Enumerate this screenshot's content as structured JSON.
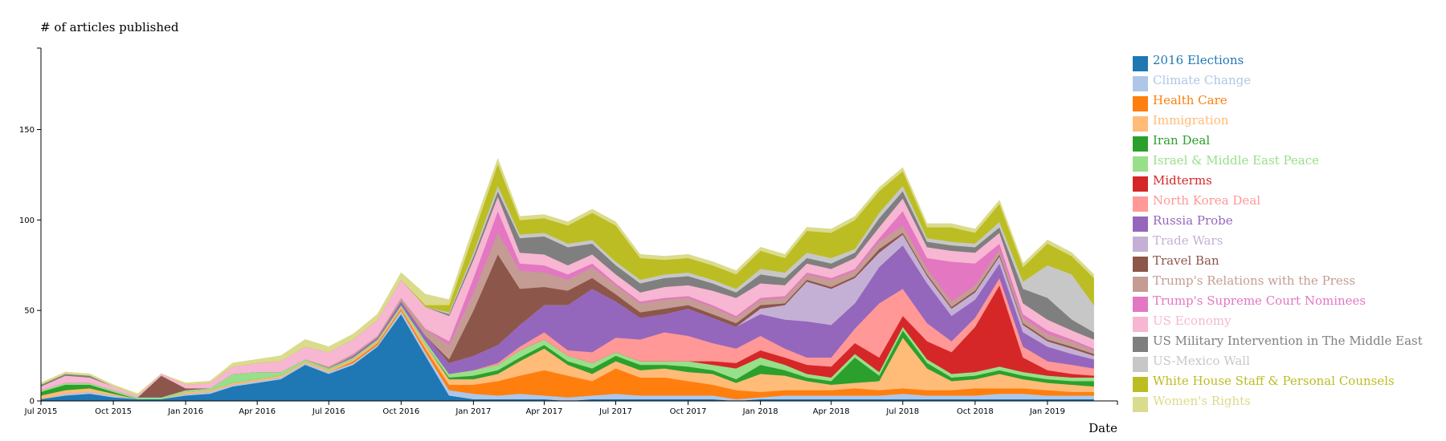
{
  "chart_data": {
    "type": "area",
    "stacked": true,
    "ylabel": "# of articles published",
    "xlabel": "Date",
    "ylim": [
      0,
      195
    ],
    "xlim": [
      "2015-07-01",
      "2019-03-31"
    ],
    "y_ticks": [
      0,
      50,
      100,
      150
    ],
    "x_ticks": [
      {
        "label": "Jul 2015",
        "date": "2015-07-01"
      },
      {
        "label": "Oct 2015",
        "date": "2015-10-01"
      },
      {
        "label": "Jan 2016",
        "date": "2016-01-01"
      },
      {
        "label": "Apr 2016",
        "date": "2016-04-01"
      },
      {
        "label": "Jul 2016",
        "date": "2016-07-01"
      },
      {
        "label": "Oct 2016",
        "date": "2016-10-01"
      },
      {
        "label": "Jan 2017",
        "date": "2017-01-01"
      },
      {
        "label": "Apr 2017",
        "date": "2017-04-01"
      },
      {
        "label": "Jul 2017",
        "date": "2017-07-01"
      },
      {
        "label": "Oct 2017",
        "date": "2017-10-01"
      },
      {
        "label": "Jan 2018",
        "date": "2018-01-01"
      },
      {
        "label": "Apr 2018",
        "date": "2018-04-01"
      },
      {
        "label": "Jul 2018",
        "date": "2018-07-01"
      },
      {
        "label": "Oct 2018",
        "date": "2018-10-01"
      },
      {
        "label": "Jan 2019",
        "date": "2019-01-01"
      }
    ],
    "legend_position": "right",
    "x": [
      "2015-07-01",
      "2015-08-01",
      "2015-09-01",
      "2015-10-01",
      "2015-11-01",
      "2015-12-01",
      "2016-01-01",
      "2016-02-01",
      "2016-03-01",
      "2016-04-01",
      "2016-05-01",
      "2016-06-01",
      "2016-07-01",
      "2016-08-01",
      "2016-09-01",
      "2016-10-01",
      "2016-11-01",
      "2016-12-01",
      "2017-01-01",
      "2017-02-01",
      "2017-03-01",
      "2017-04-01",
      "2017-05-01",
      "2017-06-01",
      "2017-07-01",
      "2017-08-01",
      "2017-09-01",
      "2017-10-01",
      "2017-11-01",
      "2017-12-01",
      "2018-01-01",
      "2018-02-01",
      "2018-03-01",
      "2018-04-01",
      "2018-05-01",
      "2018-06-01",
      "2018-07-01",
      "2018-08-01",
      "2018-09-01",
      "2018-10-01",
      "2018-11-01",
      "2018-12-01",
      "2019-01-01",
      "2019-02-01",
      "2019-03-01"
    ],
    "series": [
      {
        "name": "2016 Elections",
        "color": "#1f77b4",
        "values": [
          1,
          3,
          4,
          2,
          1,
          1,
          3,
          4,
          8,
          10,
          12,
          20,
          15,
          20,
          30,
          48,
          25,
          3,
          1,
          1,
          1,
          1,
          0,
          1,
          1,
          1,
          1,
          1,
          1,
          0,
          1,
          1,
          1,
          1,
          1,
          1,
          1,
          1,
          1,
          1,
          1,
          1,
          1,
          1,
          1
        ]
      },
      {
        "name": "Climate Change",
        "color": "#aec7e8",
        "values": [
          0,
          1,
          1,
          1,
          0,
          0,
          1,
          1,
          1,
          1,
          1,
          1,
          1,
          1,
          1,
          2,
          2,
          3,
          3,
          2,
          3,
          2,
          2,
          2,
          3,
          2,
          2,
          2,
          2,
          1,
          1,
          2,
          2,
          2,
          2,
          2,
          3,
          2,
          2,
          2,
          3,
          3,
          2,
          2,
          2
        ]
      },
      {
        "name": "Health Care",
        "color": "#ff7f0e",
        "values": [
          0,
          0,
          0,
          0,
          0,
          0,
          0,
          0,
          0,
          0,
          0,
          0,
          0,
          1,
          1,
          1,
          2,
          3,
          5,
          8,
          10,
          14,
          12,
          8,
          14,
          10,
          10,
          8,
          6,
          5,
          3,
          3,
          3,
          3,
          4,
          3,
          3,
          3,
          3,
          4,
          3,
          3,
          3,
          2,
          2
        ]
      },
      {
        "name": "Immigration",
        "color": "#ffbb78",
        "values": [
          2,
          2,
          2,
          1,
          0,
          0,
          1,
          1,
          1,
          1,
          1,
          1,
          1,
          1,
          1,
          1,
          2,
          3,
          3,
          4,
          8,
          12,
          6,
          4,
          4,
          4,
          5,
          5,
          6,
          4,
          10,
          8,
          5,
          3,
          3,
          5,
          28,
          12,
          5,
          5,
          8,
          5,
          4,
          4,
          3
        ]
      },
      {
        "name": "Iran Deal",
        "color": "#2ca02c",
        "values": [
          2,
          3,
          2,
          1,
          0,
          0,
          0,
          0,
          0,
          0,
          0,
          0,
          0,
          0,
          0,
          0,
          0,
          1,
          2,
          2,
          2,
          2,
          2,
          3,
          3,
          3,
          2,
          3,
          2,
          2,
          5,
          3,
          2,
          2,
          14,
          3,
          4,
          3,
          2,
          2,
          2,
          2,
          2,
          2,
          3
        ]
      },
      {
        "name": "Israel & Middle East Peace",
        "color": "#98df8a",
        "values": [
          1,
          1,
          1,
          1,
          1,
          1,
          1,
          1,
          5,
          4,
          2,
          1,
          1,
          1,
          1,
          1,
          2,
          2,
          3,
          3,
          4,
          3,
          3,
          3,
          2,
          2,
          2,
          3,
          3,
          6,
          4,
          3,
          2,
          2,
          2,
          2,
          2,
          2,
          2,
          2,
          2,
          2,
          2,
          2,
          2
        ]
      },
      {
        "name": "Midterms",
        "color": "#d62728",
        "values": [
          0,
          0,
          0,
          0,
          0,
          0,
          0,
          0,
          0,
          0,
          0,
          0,
          0,
          0,
          0,
          0,
          0,
          0,
          0,
          0,
          0,
          0,
          0,
          0,
          0,
          0,
          0,
          0,
          2,
          3,
          4,
          4,
          5,
          6,
          6,
          8,
          6,
          10,
          12,
          25,
          45,
          8,
          3,
          2,
          1
        ]
      },
      {
        "name": "North Korea Deal",
        "color": "#ff9896",
        "values": [
          0,
          0,
          0,
          0,
          0,
          0,
          0,
          0,
          0,
          0,
          0,
          0,
          0,
          0,
          0,
          0,
          0,
          0,
          0,
          1,
          2,
          4,
          3,
          6,
          8,
          12,
          16,
          14,
          10,
          8,
          8,
          5,
          4,
          5,
          8,
          30,
          15,
          10,
          6,
          5,
          4,
          6,
          5,
          5,
          4
        ]
      },
      {
        "name": "Russia Probe",
        "color": "#9467bd",
        "values": [
          0,
          0,
          0,
          0,
          0,
          0,
          0,
          0,
          0,
          0,
          0,
          0,
          0,
          1,
          1,
          2,
          3,
          6,
          8,
          10,
          12,
          15,
          25,
          35,
          20,
          12,
          10,
          15,
          14,
          12,
          12,
          16,
          20,
          18,
          14,
          20,
          24,
          22,
          14,
          10,
          8,
          8,
          8,
          6,
          5
        ]
      },
      {
        "name": "Trade Wars",
        "color": "#c5b0d5",
        "values": [
          0,
          0,
          0,
          0,
          0,
          0,
          0,
          0,
          0,
          0,
          0,
          0,
          0,
          0,
          0,
          0,
          0,
          0,
          0,
          0,
          0,
          0,
          0,
          0,
          0,
          0,
          0,
          0,
          0,
          0,
          3,
          8,
          22,
          20,
          14,
          8,
          6,
          4,
          4,
          4,
          4,
          4,
          3,
          3,
          2
        ]
      },
      {
        "name": "Travel Ban",
        "color": "#8c564b",
        "values": [
          0,
          0,
          0,
          0,
          0,
          12,
          1,
          0,
          0,
          0,
          0,
          0,
          0,
          0,
          0,
          0,
          0,
          2,
          25,
          50,
          20,
          10,
          8,
          6,
          4,
          3,
          3,
          2,
          2,
          2,
          2,
          1,
          1,
          1,
          1,
          2,
          1,
          1,
          1,
          1,
          1,
          1,
          1,
          1,
          1
        ]
      },
      {
        "name": "Trump's Relations with the Press",
        "color": "#c49c94",
        "values": [
          0,
          0,
          0,
          0,
          0,
          0,
          0,
          0,
          0,
          0,
          0,
          0,
          1,
          1,
          1,
          2,
          4,
          8,
          10,
          12,
          10,
          8,
          6,
          6,
          5,
          5,
          5,
          4,
          4,
          3,
          3,
          3,
          3,
          4,
          3,
          4,
          4,
          3,
          3,
          3,
          3,
          3,
          3,
          3,
          2
        ]
      },
      {
        "name": "Trump's Supreme Court Nominees",
        "color": "#e377c2",
        "values": [
          0,
          0,
          0,
          0,
          0,
          0,
          0,
          0,
          0,
          0,
          0,
          0,
          0,
          0,
          0,
          0,
          0,
          2,
          8,
          12,
          4,
          4,
          3,
          2,
          1,
          1,
          1,
          1,
          1,
          1,
          1,
          1,
          1,
          1,
          1,
          2,
          8,
          6,
          22,
          12,
          3,
          2,
          2,
          1,
          1
        ]
      },
      {
        "name": "US Economy",
        "color": "#f7b6d2",
        "values": [
          2,
          4,
          3,
          2,
          1,
          1,
          2,
          3,
          4,
          5,
          6,
          7,
          8,
          8,
          9,
          10,
          12,
          14,
          10,
          8,
          6,
          6,
          5,
          5,
          5,
          5,
          6,
          6,
          8,
          10,
          8,
          6,
          5,
          5,
          6,
          6,
          7,
          6,
          6,
          6,
          6,
          6,
          6,
          5,
          5
        ]
      },
      {
        "name": "US Military Intervention in The Middle East",
        "color": "#7f7f7f",
        "values": [
          1,
          1,
          1,
          0,
          0,
          0,
          0,
          0,
          0,
          0,
          0,
          0,
          0,
          0,
          0,
          0,
          0,
          1,
          2,
          3,
          8,
          10,
          10,
          6,
          5,
          5,
          5,
          5,
          4,
          3,
          5,
          4,
          3,
          3,
          3,
          5,
          4,
          3,
          3,
          3,
          3,
          8,
          12,
          6,
          4
        ]
      },
      {
        "name": "US-Mexico Wall",
        "color": "#c7c7c7",
        "values": [
          0,
          0,
          0,
          0,
          0,
          0,
          0,
          0,
          0,
          0,
          0,
          0,
          0,
          0,
          0,
          0,
          0,
          1,
          2,
          3,
          2,
          2,
          2,
          2,
          2,
          2,
          2,
          2,
          2,
          2,
          3,
          3,
          3,
          3,
          2,
          3,
          3,
          2,
          2,
          2,
          3,
          4,
          18,
          25,
          15
        ]
      },
      {
        "name": "White House Staff & Personal Counsels",
        "color": "#bcbd22",
        "values": [
          0,
          0,
          0,
          0,
          0,
          0,
          0,
          0,
          0,
          0,
          0,
          0,
          0,
          0,
          0,
          0,
          1,
          4,
          10,
          12,
          8,
          8,
          10,
          15,
          20,
          12,
          8,
          8,
          8,
          8,
          10,
          8,
          12,
          14,
          16,
          12,
          8,
          6,
          8,
          6,
          10,
          8,
          12,
          10,
          15
        ]
      },
      {
        "name": "Women's Rights",
        "color": "#dbdb8d",
        "values": [
          1,
          1,
          1,
          1,
          1,
          0,
          1,
          1,
          2,
          2,
          3,
          4,
          3,
          3,
          3,
          4,
          6,
          3,
          4,
          3,
          2,
          2,
          2,
          2,
          2,
          2,
          2,
          2,
          2,
          2,
          2,
          2,
          2,
          2,
          2,
          2,
          2,
          2,
          2,
          2,
          2,
          2,
          2,
          2,
          2
        ]
      }
    ]
  }
}
